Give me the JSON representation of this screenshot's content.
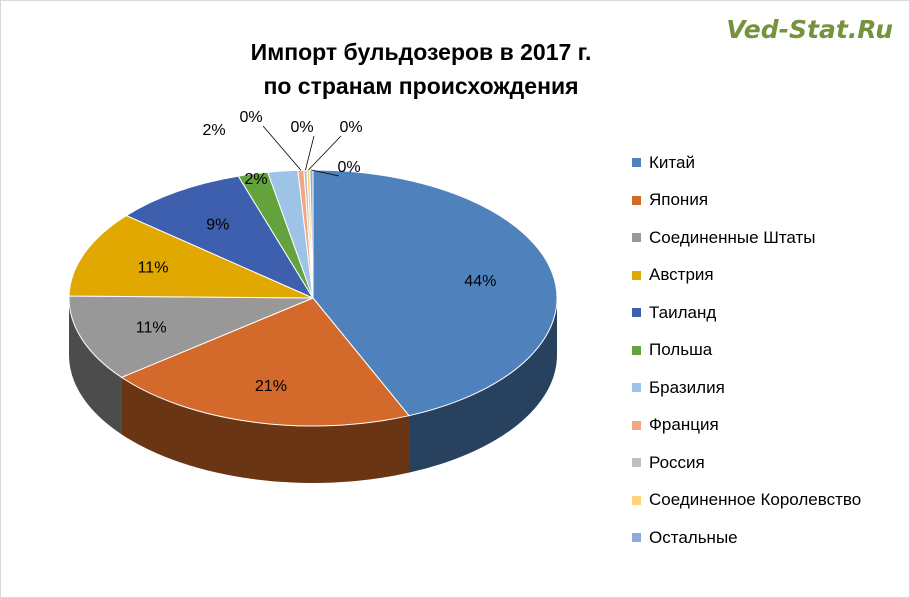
{
  "watermark": "Ved-Stat.Ru",
  "chart_data": {
    "type": "pie",
    "title_line1": "Импорт бульдозеров в 2017 г.",
    "title_line2": "по странам происхождения",
    "legend_position": "right",
    "slices": [
      {
        "name": "Китай",
        "value": 44,
        "label": "44%",
        "color": "#4f81bd"
      },
      {
        "name": "Япония",
        "value": 21,
        "label": "21%",
        "color": "#d3692a"
      },
      {
        "name": "Соединенные Штаты",
        "value": 11,
        "label": "11%",
        "color": "#989898"
      },
      {
        "name": "Австрия",
        "value": 11,
        "label": "11%",
        "color": "#e0a800"
      },
      {
        "name": "Таиланд",
        "value": 9,
        "label": "9%",
        "color": "#3e5fad"
      },
      {
        "name": "Польша",
        "value": 2,
        "label": "2%",
        "color": "#63a23c"
      },
      {
        "name": "Бразилия",
        "value": 2,
        "label": "2%",
        "color": "#9dc3e6"
      },
      {
        "name": "Франция",
        "value": 0.4,
        "label": "0%",
        "color": "#f4a582"
      },
      {
        "name": "Россия",
        "value": 0.2,
        "label": "0%",
        "color": "#bfbfbf"
      },
      {
        "name": "Соединенное Королевство",
        "value": 0.2,
        "label": "0%",
        "color": "#ffd37a"
      },
      {
        "name": "Остальные",
        "value": 0.2,
        "label": "0%",
        "color": "#8ea9db"
      }
    ]
  }
}
